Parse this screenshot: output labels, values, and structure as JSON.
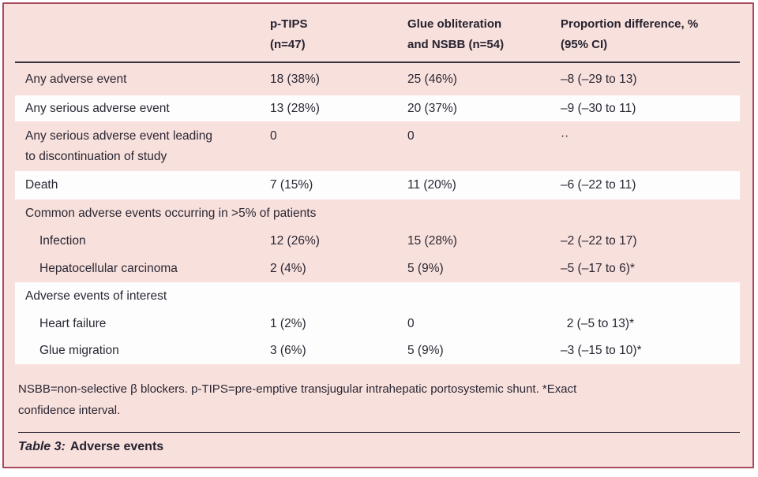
{
  "colors": {
    "card_background": "#f8e0dc",
    "stripe_white": "#fdfdfd",
    "card_border": "#a74a5e",
    "text": "#262230",
    "rule": "#36323e"
  },
  "table": {
    "caption": {
      "label": "Table 3:",
      "title": "Adverse events"
    },
    "header": {
      "col1": "",
      "col2": "p-TIPS\n(n=47)",
      "col3": "Glue obliteration\nand NSBB (n=54)",
      "col4": "Proportion difference, %\n(95% CI)"
    },
    "rows": [
      {
        "type": "data",
        "label": "Any adverse event",
        "ptips": "18 (38%)",
        "glue_nsbb": "25 (46%)",
        "prop_diff": "–8 (–29 to 13)"
      },
      {
        "type": "data",
        "label": "Any serious adverse event",
        "ptips": "13 (28%)",
        "glue_nsbb": "20 (37%)",
        "prop_diff": "–9 (–30 to 11)"
      },
      {
        "type": "data",
        "label": "Any serious adverse event leading\nto discontinuation of study",
        "ptips": "0",
        "glue_nsbb": "0",
        "prop_diff": "··"
      },
      {
        "type": "data",
        "label": "Death",
        "ptips": "7 (15%)",
        "glue_nsbb": "11 (20%)",
        "prop_diff": "–6 (–22 to 11)"
      },
      {
        "type": "section",
        "label": "Common adverse events occurring in >5% of patients"
      },
      {
        "type": "data",
        "indent": true,
        "label": "Infection",
        "ptips": "12 (26%)",
        "glue_nsbb": "15 (28%)",
        "prop_diff": "–2 (–22 to 17)"
      },
      {
        "type": "data",
        "indent": true,
        "label": "Hepatocellular carcinoma",
        "ptips": "2 (4%)",
        "glue_nsbb": "5 (9%)",
        "prop_diff": "–5 (–17 to 6)*"
      },
      {
        "type": "section",
        "label": "Adverse events of interest"
      },
      {
        "type": "data",
        "indent": true,
        "label": "Heart failure",
        "ptips": "1 (2%)",
        "glue_nsbb": "0",
        "prop_diff": " 2 (–5 to 13)*"
      },
      {
        "type": "data",
        "indent": true,
        "label": "Glue migration",
        "ptips": "3 (6%)",
        "glue_nsbb": "5 (9%)",
        "prop_diff": "–3 (–15 to 10)*"
      }
    ],
    "footnote": "NSBB=non-selective β blockers. p-TIPS=pre-emptive transjugular intrahepatic portosystemic shunt. *Exact\nconfidence interval."
  }
}
